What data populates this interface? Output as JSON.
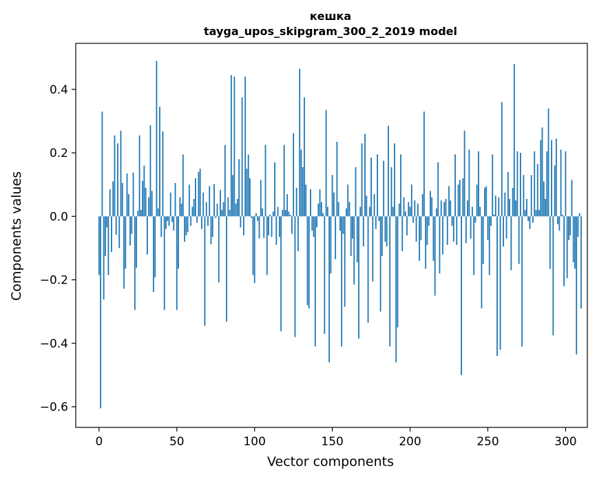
{
  "chart_data": {
    "type": "bar",
    "title": "кешка",
    "subtitle": "tayga_upos_skipgram_300_2_2019 model",
    "xlabel": "Vector components",
    "ylabel": "Components values",
    "xlim": [
      -15,
      314
    ],
    "ylim": [
      -0.665,
      0.545
    ],
    "xticks": [
      0,
      50,
      100,
      150,
      200,
      250,
      300
    ],
    "xtick_labels": [
      "0",
      "50",
      "100",
      "150",
      "200",
      "250",
      "300"
    ],
    "yticks": [
      -0.6,
      -0.4,
      -0.2,
      0.0,
      0.2,
      0.4
    ],
    "ytick_labels": [
      "−0.6",
      "−0.4",
      "−0.2",
      "0.0",
      "0.2",
      "0.4"
    ],
    "bar_color": "#1f77b4",
    "grid": false,
    "values": [
      -0.185,
      -0.605,
      0.33,
      -0.262,
      -0.125,
      -0.035,
      -0.185,
      0.085,
      -0.112,
      0.11,
      0.255,
      -0.058,
      0.23,
      -0.1,
      0.27,
      0.105,
      -0.228,
      -0.165,
      0.135,
      0.07,
      -0.092,
      -0.055,
      0.138,
      -0.295,
      -0.162,
      0.018,
      0.255,
      0.02,
      0.112,
      0.16,
      0.09,
      -0.12,
      0.06,
      0.287,
      0.08,
      -0.238,
      -0.192,
      0.49,
      0.025,
      0.345,
      -0.065,
      0.268,
      -0.295,
      -0.04,
      -0.015,
      -0.03,
      0.075,
      -0.018,
      -0.045,
      0.105,
      -0.295,
      -0.165,
      0.06,
      0.04,
      0.195,
      -0.08,
      -0.06,
      -0.05,
      0.1,
      -0.03,
      0.03,
      0.055,
      0.12,
      -0.02,
      0.14,
      0.15,
      -0.04,
      0.075,
      -0.345,
      0.045,
      -0.03,
      0.095,
      -0.088,
      -0.065,
      0.102,
      -0.005,
      0.04,
      -0.208,
      0.083,
      0.02,
      0.045,
      0.225,
      -0.332,
      0.06,
      0.02,
      0.445,
      0.13,
      0.44,
      0.04,
      0.055,
      0.18,
      -0.035,
      0.375,
      -0.06,
      0.44,
      0.15,
      0.195,
      0.12,
      -0.005,
      -0.185,
      -0.21,
      0.01,
      -0.015,
      -0.07,
      0.115,
      0.025,
      -0.068,
      0.225,
      -0.185,
      -0.06,
      0.005,
      -0.065,
      0.015,
      0.17,
      -0.09,
      0.03,
      -0.065,
      -0.362,
      0.02,
      0.225,
      0.02,
      0.07,
      0.015,
      0.005,
      -0.055,
      0.262,
      -0.38,
      0.09,
      -0.11,
      0.465,
      0.21,
      0.155,
      0.375,
      0.1,
      -0.28,
      -0.29,
      0.085,
      -0.045,
      -0.065,
      -0.41,
      -0.035,
      0.04,
      0.085,
      0.045,
      0.01,
      -0.37,
      0.335,
      0.03,
      -0.46,
      -0.18,
      0.13,
      0.075,
      -0.135,
      0.235,
      0.045,
      -0.045,
      -0.41,
      -0.055,
      -0.285,
      0.025,
      0.1,
      0.045,
      -0.125,
      -0.07,
      -0.215,
      0.155,
      -0.145,
      -0.385,
      0.03,
      0.23,
      -0.095,
      0.26,
      0.065,
      -0.335,
      0.03,
      0.185,
      -0.205,
      0.07,
      -0.04,
      0.195,
      -0.015,
      -0.3,
      -0.125,
      0.175,
      -0.08,
      -0.095,
      0.285,
      -0.41,
      0.155,
      0.03,
      0.23,
      -0.46,
      -0.35,
      0.04,
      0.195,
      -0.11,
      0.06,
      0.015,
      -0.06,
      0.045,
      0.03,
      0.1,
      -0.02,
      0.05,
      -0.08,
      0.04,
      -0.14,
      -0.075,
      0.07,
      0.33,
      -0.165,
      -0.09,
      -0.03,
      0.08,
      0.06,
      -0.14,
      -0.25,
      0.025,
      0.17,
      -0.18,
      0.05,
      -0.12,
      0.045,
      0.055,
      -0.09,
      0.095,
      0.05,
      -0.03,
      -0.08,
      0.195,
      -0.09,
      0.1,
      0.115,
      -0.5,
      0.12,
      0.27,
      -0.085,
      0.05,
      0.21,
      -0.07,
      0.03,
      -0.185,
      -0.02,
      0.1,
      0.205,
      0.03,
      -0.29,
      -0.15,
      0.09,
      0.095,
      -0.075,
      -0.185,
      -0.03,
      0.195,
      0.005,
      0.065,
      -0.44,
      0.06,
      -0.42,
      0.36,
      -0.095,
      0.075,
      -0.07,
      0.14,
      0.055,
      -0.17,
      0.09,
      0.48,
      0.05,
      0.205,
      -0.15,
      0.2,
      -0.41,
      0.13,
      0.02,
      0.055,
      -0.015,
      -0.04,
      0.13,
      -0.02,
      0.205,
      0.02,
      0.165,
      0.02,
      0.24,
      0.28,
      0.11,
      0.055,
      0.205,
      0.34,
      -0.165,
      0.24,
      -0.375,
      0.16,
      0.245,
      -0.025,
      -0.045,
      0.21,
      0.005,
      -0.22,
      0.205,
      -0.195,
      -0.075,
      -0.06,
      0.115,
      -0.145,
      -0.165,
      -0.435,
      -0.065,
      0.01,
      -0.29
    ]
  }
}
